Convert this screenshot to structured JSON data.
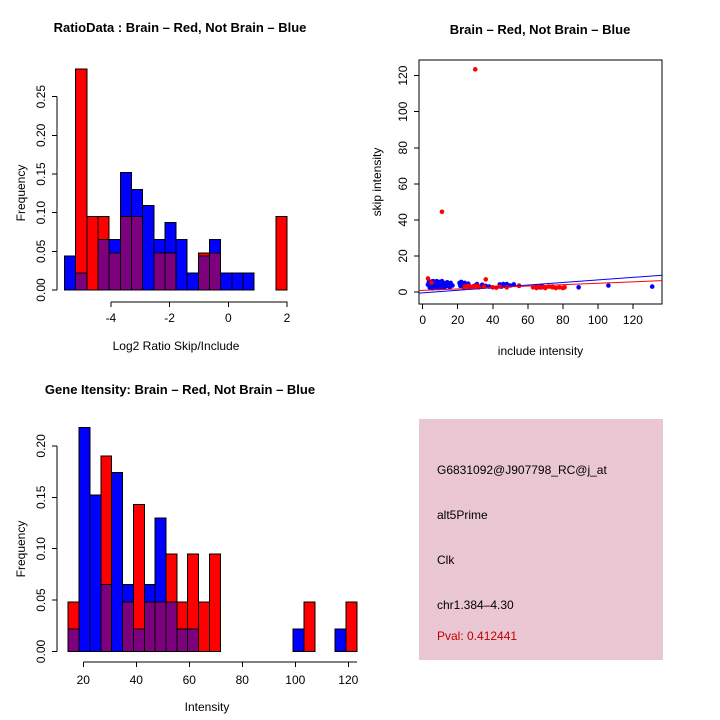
{
  "colors": {
    "red": "#ff0000",
    "blue": "#0000ff",
    "purple": "#7d007d",
    "axis": "#000000",
    "pval": "#c00000",
    "info_box_bg": "#f2c6d0"
  },
  "chart_data": [
    {
      "panel": "top-left",
      "type": "bar",
      "variant": "overlaid-histograms",
      "title": "RatioData : Brain – Red, Not Brain – Blue",
      "xlabel": "Log2 Ratio Skip/Include",
      "ylabel": "Frequency",
      "legend_meaning": {
        "red": "Brain",
        "blue": "Not Brain",
        "purple": "overlap"
      },
      "x_ticks": [
        {
          "v": -4,
          "label": "-4"
        },
        {
          "v": -2,
          "label": "-2"
        },
        {
          "v": 0,
          "label": "0"
        },
        {
          "v": 2,
          "label": "2"
        }
      ],
      "y_ticks": [
        {
          "v": 0.0,
          "label": "0.00"
        },
        {
          "v": 0.05,
          "label": "0.05"
        },
        {
          "v": 0.1,
          "label": "0.10"
        },
        {
          "v": 0.15,
          "label": "0.15"
        },
        {
          "v": 0.2,
          "label": "0.20"
        },
        {
          "v": 0.25,
          "label": "0.25"
        }
      ],
      "xlim": [
        -5.6,
        2.2
      ],
      "ylim": [
        0,
        0.29
      ],
      "bin_width": 0.38,
      "bars": [
        {
          "x": -5.58,
          "blue": 0.044,
          "red": 0
        },
        {
          "x": -5.2,
          "blue": 0.022,
          "red": 0.286
        },
        {
          "x": -4.82,
          "blue": 0,
          "red": 0.095
        },
        {
          "x": -4.44,
          "blue": 0.065,
          "red": 0.095
        },
        {
          "x": -4.06,
          "blue": 0.065,
          "red": 0.048
        },
        {
          "x": -3.68,
          "blue": 0.152,
          "red": 0.095
        },
        {
          "x": -3.3,
          "blue": 0.13,
          "red": 0.095
        },
        {
          "x": -2.92,
          "blue": 0.109,
          "red": 0
        },
        {
          "x": -2.54,
          "blue": 0.065,
          "red": 0.048
        },
        {
          "x": -2.16,
          "blue": 0.087,
          "red": 0.048
        },
        {
          "x": -1.78,
          "blue": 0.065,
          "red": 0
        },
        {
          "x": -1.4,
          "blue": 0.022,
          "red": 0
        },
        {
          "x": -1.02,
          "blue": 0.044,
          "red": 0.048
        },
        {
          "x": -0.64,
          "blue": 0.065,
          "red": 0.048
        },
        {
          "x": -0.26,
          "blue": 0.022,
          "red": 0
        },
        {
          "x": 0.12,
          "blue": 0.022,
          "red": 0
        },
        {
          "x": 0.5,
          "blue": 0.022,
          "red": 0
        },
        {
          "x": 1.62,
          "blue": 0,
          "red": 0.095
        }
      ]
    },
    {
      "panel": "top-right",
      "type": "scatter",
      "title": "Brain – Red, Not Brain – Blue",
      "xlabel": "include intensity",
      "ylabel": "skip intensity",
      "x_ticks": [
        {
          "v": 0,
          "label": "0"
        },
        {
          "v": 20,
          "label": "20"
        },
        {
          "v": 40,
          "label": "40"
        },
        {
          "v": 60,
          "label": "60"
        },
        {
          "v": 80,
          "label": "80"
        },
        {
          "v": 100,
          "label": "100"
        },
        {
          "v": 120,
          "label": "120"
        }
      ],
      "y_ticks": [
        {
          "v": 0,
          "label": "0"
        },
        {
          "v": 20,
          "label": "20"
        },
        {
          "v": 40,
          "label": "40"
        },
        {
          "v": 60,
          "label": "60"
        },
        {
          "v": 80,
          "label": "80"
        },
        {
          "v": 100,
          "label": "100"
        },
        {
          "v": 120,
          "label": "120"
        }
      ],
      "xlim": [
        -2.1,
        136.6
      ],
      "ylim": [
        -6.7,
        128.7
      ],
      "series": [
        {
          "name": "not-brain",
          "color_key": "blue",
          "points": [
            [
              3,
              4
            ],
            [
              3.5,
              5.5
            ],
            [
              4,
              2.5
            ],
            [
              4.5,
              4.5
            ],
            [
              5,
              3
            ],
            [
              5,
              5.8
            ],
            [
              5.5,
              2
            ],
            [
              6,
              4.2
            ],
            [
              6,
              6
            ],
            [
              6.5,
              3.2
            ],
            [
              7,
              5
            ],
            [
              7.5,
              2.6
            ],
            [
              8,
              4.6
            ],
            [
              8,
              6
            ],
            [
              8.5,
              3.4
            ],
            [
              9,
              2.2
            ],
            [
              9,
              4.2
            ],
            [
              9.5,
              5.6
            ],
            [
              10,
              3.2
            ],
            [
              10.5,
              4.8
            ],
            [
              11,
              2.4
            ],
            [
              11,
              6
            ],
            [
              11.5,
              3.8
            ],
            [
              12,
              5
            ],
            [
              12.5,
              2.8
            ],
            [
              13,
              4.4
            ],
            [
              13.5,
              3.2
            ],
            [
              14,
              5.4
            ],
            [
              15,
              4.6
            ],
            [
              15.5,
              2.6
            ],
            [
              16,
              5
            ],
            [
              17,
              3.6
            ],
            [
              21,
              5
            ],
            [
              21.5,
              3.4
            ],
            [
              22,
              5.6
            ],
            [
              23,
              4.2
            ],
            [
              23.5,
              2.6
            ],
            [
              24,
              5
            ],
            [
              25,
              3.6
            ],
            [
              26,
              4.6
            ],
            [
              27,
              3
            ],
            [
              30,
              3.6
            ],
            [
              31,
              4.4
            ],
            [
              33,
              3
            ],
            [
              34,
              4
            ],
            [
              36,
              3.4
            ],
            [
              38,
              3
            ],
            [
              44,
              4.2
            ],
            [
              45,
              3
            ],
            [
              46,
              4.4
            ],
            [
              47,
              3.4
            ],
            [
              48,
              4.4
            ],
            [
              50,
              3.6
            ],
            [
              52,
              4.2
            ],
            [
              55,
              3.4
            ],
            [
              65,
              3
            ],
            [
              67,
              2.6
            ],
            [
              68,
              3.4
            ],
            [
              74,
              3
            ],
            [
              89,
              2.6
            ],
            [
              106,
              3.6
            ],
            [
              131,
              3
            ]
          ]
        },
        {
          "name": "brain",
          "color_key": "red",
          "points": [
            [
              3,
              7.5
            ],
            [
              5,
              5.2
            ],
            [
              11,
              44.5
            ],
            [
              24,
              3
            ],
            [
              26,
              3.4
            ],
            [
              28,
              2.6
            ],
            [
              29,
              3.2
            ],
            [
              30,
              123.5
            ],
            [
              31,
              3.6
            ],
            [
              32,
              2.6
            ],
            [
              35,
              3
            ],
            [
              36,
              7
            ],
            [
              40,
              2.6
            ],
            [
              42,
              2.4
            ],
            [
              44,
              3
            ],
            [
              48,
              2.6
            ],
            [
              55,
              3.6
            ],
            [
              63,
              2.6
            ],
            [
              65,
              2.2
            ],
            [
              66,
              3
            ],
            [
              68,
              2.6
            ],
            [
              70,
              2.2
            ],
            [
              72,
              3
            ],
            [
              74,
              2.6
            ],
            [
              76,
              2.2
            ],
            [
              78,
              2.6
            ],
            [
              80,
              2.2
            ],
            [
              81,
              2.6
            ]
          ]
        }
      ],
      "fit_lines": [
        {
          "color_key": "blue",
          "x1": -2.1,
          "y1": -0.6,
          "x2": 136.6,
          "y2": 9.3
        },
        {
          "color_key": "red",
          "x1": -2.1,
          "y1": 0.8,
          "x2": 136.6,
          "y2": 6.3
        }
      ]
    },
    {
      "panel": "bottom-left",
      "type": "bar",
      "variant": "overlaid-histograms",
      "title": "Gene Itensity: Brain – Red, Not Brain – Blue",
      "xlabel": "Intensity",
      "ylabel": "Frequency",
      "legend_meaning": {
        "red": "Brain",
        "blue": "Not Brain",
        "purple": "overlap"
      },
      "x_ticks": [
        {
          "v": 20,
          "label": "20"
        },
        {
          "v": 40,
          "label": "40"
        },
        {
          "v": 60,
          "label": "60"
        },
        {
          "v": 80,
          "label": "80"
        },
        {
          "v": 100,
          "label": "100"
        },
        {
          "v": 120,
          "label": "120"
        }
      ],
      "y_ticks": [
        {
          "v": 0.0,
          "label": "0.00"
        },
        {
          "v": 0.05,
          "label": "0.05"
        },
        {
          "v": 0.1,
          "label": "0.10"
        },
        {
          "v": 0.15,
          "label": "0.15"
        },
        {
          "v": 0.2,
          "label": "0.20"
        }
      ],
      "xlim": [
        12,
        125
      ],
      "ylim": [
        0,
        0.22
      ],
      "bin_width": 4.1,
      "bars": [
        {
          "x": 14.3,
          "blue": 0.022,
          "red": 0.048
        },
        {
          "x": 18.4,
          "blue": 0.218,
          "red": 0
        },
        {
          "x": 22.5,
          "blue": 0.152,
          "red": 0
        },
        {
          "x": 26.6,
          "blue": 0.065,
          "red": 0.19
        },
        {
          "x": 30.7,
          "blue": 0.174,
          "red": 0
        },
        {
          "x": 34.8,
          "blue": 0.065,
          "red": 0.048
        },
        {
          "x": 38.9,
          "blue": 0.022,
          "red": 0.143
        },
        {
          "x": 43.0,
          "blue": 0.065,
          "red": 0.048
        },
        {
          "x": 47.1,
          "blue": 0.13,
          "red": 0.048
        },
        {
          "x": 51.2,
          "blue": 0.048,
          "red": 0.095
        },
        {
          "x": 55.3,
          "blue": 0.022,
          "red": 0.048
        },
        {
          "x": 59.4,
          "blue": 0.022,
          "red": 0.095
        },
        {
          "x": 63.5,
          "blue": 0,
          "red": 0.048
        },
        {
          "x": 67.6,
          "blue": 0,
          "red": 0.095
        },
        {
          "x": 99.2,
          "blue": 0.022,
          "red": 0
        },
        {
          "x": 103.3,
          "blue": 0,
          "red": 0.048
        },
        {
          "x": 115.0,
          "blue": 0.022,
          "red": 0
        },
        {
          "x": 119.1,
          "blue": 0,
          "red": 0.048
        }
      ]
    },
    {
      "panel": "bottom-right",
      "type": "info-box",
      "lines": [
        {
          "id": "probe-id",
          "text": "G6831092@J907798_RC@j_at"
        },
        {
          "id": "splice-type",
          "text": "alt5Prime"
        },
        {
          "id": "gene-symbol",
          "text": "Clk"
        },
        {
          "id": "locus",
          "text": "chr1.384–4.30"
        },
        {
          "id": "pvalue",
          "text": "Pval: 0.412441"
        }
      ]
    }
  ]
}
